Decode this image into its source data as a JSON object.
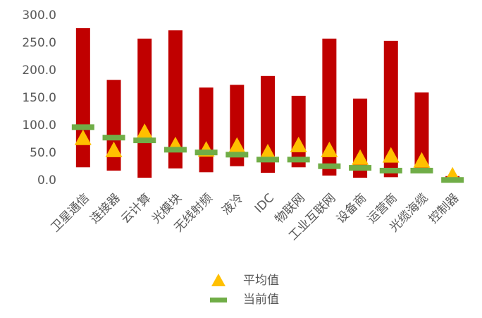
{
  "chart_data": {
    "type": "range",
    "categories": [
      "卫星通信",
      "连接器",
      "云计算",
      "光模块",
      "无线射频",
      "液冷",
      "IDC",
      "物联网",
      "工业互联网",
      "设备商",
      "运营商",
      "光缆海缆",
      "控制器"
    ],
    "range": {
      "color": "#c00000",
      "high": [
        277,
        183,
        258,
        273,
        169,
        174,
        190,
        154,
        258,
        149,
        254,
        160,
        8
      ],
      "low": [
        24,
        18,
        5,
        22,
        15,
        26,
        14,
        24,
        9,
        5,
        6,
        15,
        0
      ]
    },
    "series": [
      {
        "name": "平均值",
        "color": "#ffc000",
        "marker": "triangle",
        "values": [
          76,
          54,
          87,
          63,
          55,
          62,
          50,
          63,
          54,
          40,
          44,
          35,
          8
        ]
      },
      {
        "name": "当前值",
        "color": "#70ad47",
        "marker": "dash",
        "values": [
          97,
          78,
          73,
          56,
          51,
          47,
          38,
          38,
          26,
          23,
          18,
          18,
          1
        ]
      }
    ],
    "ylim": [
      0,
      300
    ],
    "yticks": [
      {
        "value": 0,
        "label": "0.0"
      },
      {
        "value": 50,
        "label": "50.0"
      },
      {
        "value": 100,
        "label": "100.0"
      },
      {
        "value": 150,
        "label": "150.0"
      },
      {
        "value": 200,
        "label": "200.0"
      },
      {
        "value": 250,
        "label": "250.0"
      },
      {
        "value": 300,
        "label": "300.0"
      }
    ]
  }
}
